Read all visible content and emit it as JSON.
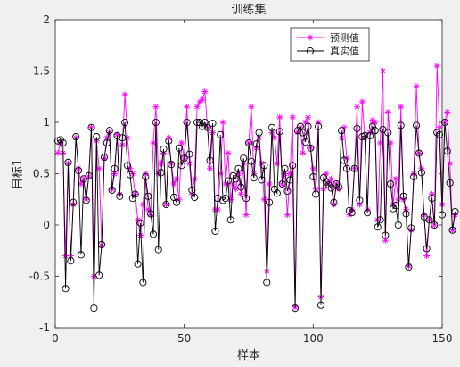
{
  "chart_data": {
    "type": "line",
    "title": "训练集",
    "xlabel": "样本",
    "ylabel": "目标1",
    "xlim": [
      0,
      150
    ],
    "ylim": [
      -1,
      2
    ],
    "xticks": [
      "0",
      "50",
      "100",
      "150"
    ],
    "yticks": [
      "-1",
      "-0.5",
      "0",
      "0.5",
      "1",
      "1.5",
      "2"
    ],
    "grid": false,
    "legend_position": "top-right",
    "series": [
      {
        "name": "预测值",
        "color": "#ff00ff",
        "marker": "star",
        "values": [
          0.7,
          0.8,
          0.7,
          -0.3,
          0.6,
          -0.3,
          0.2,
          0.85,
          0.55,
          0.4,
          0.45,
          0.25,
          0.47,
          0.95,
          -0.5,
          0.82,
          0.55,
          -0.2,
          0.65,
          0.85,
          0.9,
          0.35,
          0.5,
          0.88,
          0.3,
          0.78,
          1.27,
          0.85,
          0.55,
          0.5,
          0.3,
          0.05,
          -0.1,
          0.2,
          0.5,
          0.15,
          0.1,
          0.8,
          1.15,
          0.5,
          0.6,
          0.7,
          0.2,
          0.85,
          0.6,
          0.4,
          0.45,
          0.25,
          0.8,
          0.65,
          1.15,
          0.6,
          0.3,
          0.45,
          1.15,
          1.2,
          1.22,
          1.3,
          0.95,
          0.55,
          0.9,
          0.15,
          0.15,
          0.5,
          1.0,
          0.4,
          0.7,
          0.25,
          0.4,
          0.35,
          0.5,
          0.3,
          0.6,
          0.1,
          0.8,
          1.15,
          0.5,
          0.75,
          0.85,
          0.6,
          0.25,
          -0.45,
          0.4,
          0.9,
          0.85,
          0.6,
          1.05,
          0.4,
          0.5,
          0.1,
          0.5,
          1.05,
          -0.8,
          0.9,
          0.95,
          0.7,
          1.0,
          1.05,
          0.75,
          0.55,
          0.35,
          1.0,
          -0.7,
          0.35,
          0.5,
          0.4,
          0.45,
          0.2,
          0.4,
          0.35,
          0.85,
          0.95,
          0.65,
          0.1,
          0.15,
          0.55,
          1.15,
          0.2,
          1.2,
          0.85,
          0.15,
          0.9,
          1.02,
          1.0,
          0.05,
          0.8,
          1.5,
          -0.15,
          1.1,
          0.8,
          0.2,
          0.45,
          0.25,
          1.15,
          0.25,
          0.15,
          -0.4,
          -0.05,
          0.5,
          1.35,
          0.7,
          0.55,
          0.1,
          -0.3,
          0.05,
          0.3,
          0.0,
          1.55,
          0.95,
          0.2,
          1.0,
          1.1,
          0.6,
          -0.05,
          0.1
        ]
      },
      {
        "name": "真实值",
        "color": "#000000",
        "marker": "circle",
        "values": [
          0.82,
          0.83,
          0.8,
          -0.62,
          0.61,
          -0.35,
          0.22,
          0.86,
          0.53,
          -0.29,
          0.45,
          0.24,
          0.48,
          0.95,
          -0.81,
          0.86,
          -0.49,
          -0.19,
          0.66,
          0.8,
          0.92,
          0.34,
          0.55,
          0.87,
          0.28,
          0.85,
          1.0,
          0.58,
          0.49,
          0.26,
          0.3,
          -0.38,
          0.02,
          -0.56,
          0.47,
          0.28,
          0.11,
          -0.09,
          1.0,
          -0.24,
          0.51,
          0.74,
          0.2,
          0.82,
          0.59,
          0.27,
          0.22,
          0.75,
          0.58,
          0.65,
          1.0,
          0.69,
          0.34,
          0.27,
          1.0,
          1.0,
          0.96,
          1.0,
          0.95,
          0.63,
          0.99,
          -0.06,
          0.26,
          0.88,
          0.24,
          0.26,
          0.43,
          0.05,
          0.48,
          0.45,
          0.55,
          0.37,
          0.65,
          0.26,
          0.8,
          0.62,
          0.46,
          0.79,
          0.9,
          0.44,
          0.58,
          -0.56,
          0.22,
          0.95,
          0.35,
          0.31,
          0.91,
          0.4,
          0.55,
          0.33,
          0.44,
          0.58,
          -0.81,
          0.92,
          0.96,
          0.9,
          0.81,
          0.96,
          0.75,
          0.47,
          0.3,
          0.96,
          -0.78,
          0.46,
          0.42,
          0.39,
          0.36,
          0.22,
          0.4,
          0.37,
          0.92,
          0.63,
          0.55,
          0.14,
          0.12,
          0.55,
          0.94,
          0.24,
          0.86,
          0.87,
          0.12,
          0.87,
          0.96,
          0.92,
          -0.02,
          0.05,
          0.93,
          -0.1,
          0.9,
          0.4,
          0.16,
          0.19,
          0.0,
          0.97,
          0.28,
          0.11,
          -0.41,
          -0.03,
          0.47,
          0.97,
          0.7,
          0.51,
          0.08,
          -0.23,
          0.05,
          0.26,
          0.0,
          0.9,
          0.88,
          0.1,
          1.0,
          0.72,
          0.41,
          -0.05,
          0.13
        ]
      }
    ]
  }
}
